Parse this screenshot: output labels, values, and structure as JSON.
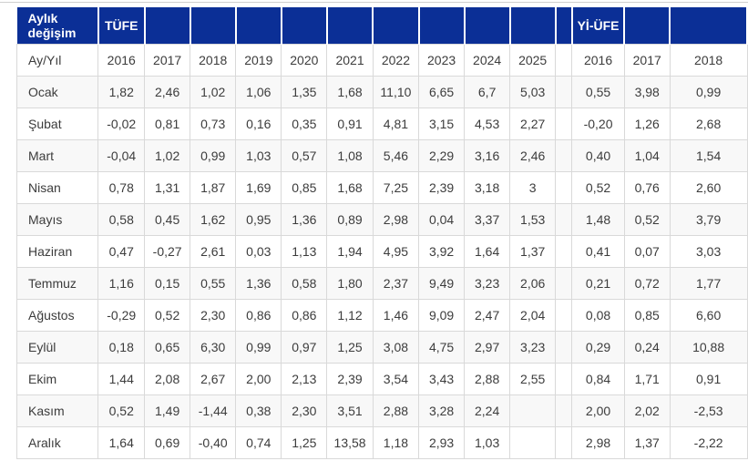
{
  "colors": {
    "header_bg": "#0b2f96",
    "header_text": "#ffffff",
    "cell_border": "#d9d9d9",
    "row_stripe": "#f8f8f8",
    "body_text": "#3c3c3c"
  },
  "table": {
    "header": {
      "title": "Aylık değişim",
      "tufe_label": "TÜFE",
      "yiufe_label": "Yİ-ÜFE"
    },
    "subheader": {
      "axis_label": "Ay/Yıl",
      "tufe_years": [
        "2016",
        "2017",
        "2018",
        "2019",
        "2020",
        "2021",
        "2022",
        "2023",
        "2024",
        "2025"
      ],
      "yiufe_years": [
        "2016",
        "2017",
        "2018"
      ]
    },
    "rows": [
      {
        "month": "Ocak",
        "tufe": [
          "1,82",
          "2,46",
          "1,02",
          "1,06",
          "1,35",
          "1,68",
          "11,10",
          "6,65",
          "6,7",
          "5,03"
        ],
        "yiufe": [
          "0,55",
          "3,98",
          "0,99"
        ]
      },
      {
        "month": "Şubat",
        "tufe": [
          "-0,02",
          "0,81",
          "0,73",
          "0,16",
          "0,35",
          "0,91",
          "4,81",
          "3,15",
          "4,53",
          "2,27"
        ],
        "yiufe": [
          "-0,20",
          "1,26",
          "2,68"
        ]
      },
      {
        "month": "Mart",
        "tufe": [
          "-0,04",
          "1,02",
          "0,99",
          "1,03",
          "0,57",
          "1,08",
          "5,46",
          "2,29",
          "3,16",
          "2,46"
        ],
        "yiufe": [
          "0,40",
          "1,04",
          "1,54"
        ]
      },
      {
        "month": "Nisan",
        "tufe": [
          "0,78",
          "1,31",
          "1,87",
          "1,69",
          "0,85",
          "1,68",
          "7,25",
          "2,39",
          "3,18",
          "3"
        ],
        "yiufe": [
          "0,52",
          "0,76",
          "2,60"
        ]
      },
      {
        "month": "Mayıs",
        "tufe": [
          "0,58",
          "0,45",
          "1,62",
          "0,95",
          "1,36",
          "0,89",
          "2,98",
          "0,04",
          "3,37",
          "1,53"
        ],
        "yiufe": [
          "1,48",
          "0,52",
          "3,79"
        ]
      },
      {
        "month": "Haziran",
        "tufe": [
          "0,47",
          "-0,27",
          "2,61",
          "0,03",
          "1,13",
          "1,94",
          "4,95",
          "3,92",
          "1,64",
          "1,37"
        ],
        "yiufe": [
          "0,41",
          "0,07",
          "3,03"
        ]
      },
      {
        "month": "Temmuz",
        "tufe": [
          "1,16",
          "0,15",
          "0,55",
          "1,36",
          "0,58",
          "1,80",
          "2,37",
          "9,49",
          "3,23",
          "2,06"
        ],
        "yiufe": [
          "0,21",
          "0,72",
          "1,77"
        ]
      },
      {
        "month": "Ağustos",
        "tufe": [
          "-0,29",
          "0,52",
          "2,30",
          "0,86",
          "0,86",
          "1,12",
          "1,46",
          "9,09",
          "2,47",
          "2,04"
        ],
        "yiufe": [
          "0,08",
          "0,85",
          "6,60"
        ]
      },
      {
        "month": "Eylül",
        "tufe": [
          "0,18",
          "0,65",
          "6,30",
          "0,99",
          "0,97",
          "1,25",
          "3,08",
          "4,75",
          "2,97",
          "3,23"
        ],
        "yiufe": [
          "0,29",
          "0,24",
          "10,88"
        ]
      },
      {
        "month": "Ekim",
        "tufe": [
          "1,44",
          "2,08",
          "2,67",
          "2,00",
          "2,13",
          "2,39",
          "3,54",
          "3,43",
          "2,88",
          "2,55"
        ],
        "yiufe": [
          "0,84",
          "1,71",
          "0,91"
        ]
      },
      {
        "month": "Kasım",
        "tufe": [
          "0,52",
          "1,49",
          "-1,44",
          "0,38",
          "2,30",
          "3,51",
          "2,88",
          "3,28",
          "2,24",
          ""
        ],
        "yiufe": [
          "2,00",
          "2,02",
          "-2,53"
        ]
      },
      {
        "month": "Aralık",
        "tufe": [
          "1,64",
          "0,69",
          "-0,40",
          "0,74",
          "1,25",
          "13,58",
          "1,18",
          "2,93",
          "1,03",
          ""
        ],
        "yiufe": [
          "2,98",
          "1,37",
          "-2,22"
        ]
      }
    ]
  }
}
